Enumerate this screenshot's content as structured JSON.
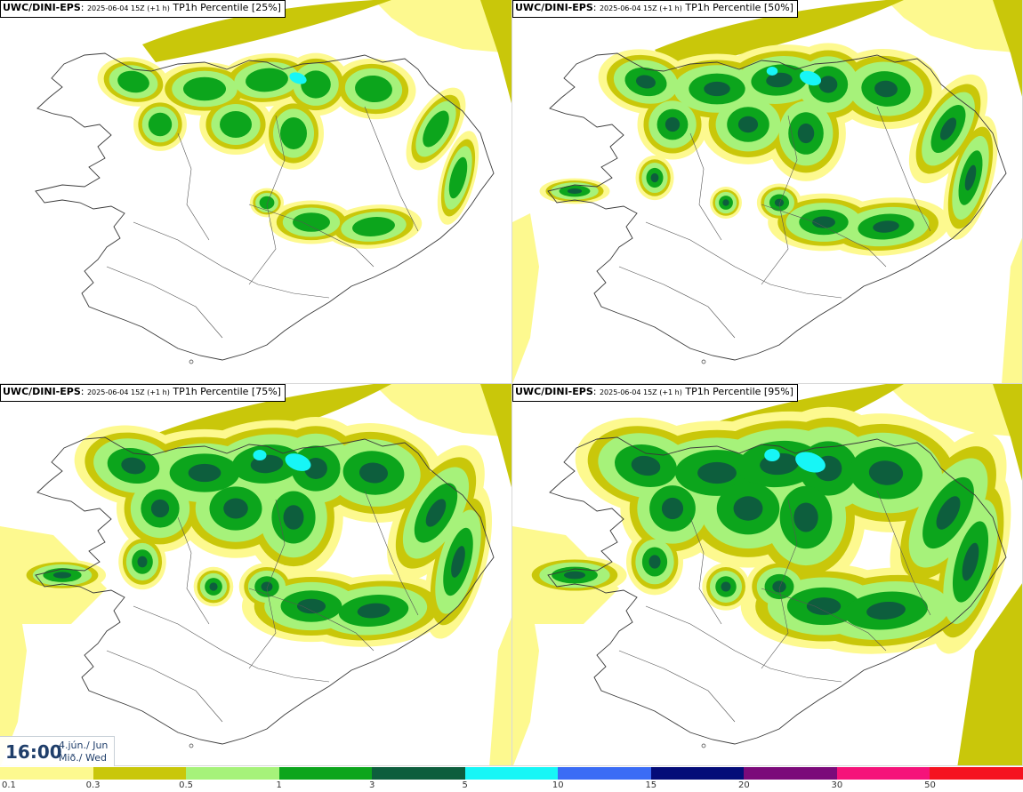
{
  "panels": [
    {
      "model": "UWC/DINI-EPS",
      "run": "2025-06-04 15Z (+1 h)",
      "field": "TP1h Percentile [25%]",
      "coverage": 0
    },
    {
      "model": "UWC/DINI-EPS",
      "run": "2025-06-04 15Z (+1 h)",
      "field": "TP1h Percentile [50%]",
      "coverage": 1
    },
    {
      "model": "UWC/DINI-EPS",
      "run": "2025-06-04 15Z (+1 h)",
      "field": "TP1h Percentile [75%]",
      "coverage": 2
    },
    {
      "model": "UWC/DINI-EPS",
      "run": "2025-06-04 15Z (+1 h)",
      "field": "TP1h Percentile [95%]",
      "coverage": 3
    }
  ],
  "time": {
    "clock": "16:00",
    "date_line1": "4.jún./ Jun",
    "date_line2": "Mið./ Wed"
  },
  "legend": {
    "colors": [
      "#fdf98f",
      "#c9c70a",
      "#a6f27a",
      "#0ca51c",
      "#0d5e3d",
      "#17f6f6",
      "#3b6cf5",
      "#040c78",
      "#7b0a7a",
      "#f5137a",
      "#f5121f"
    ],
    "labels": [
      "0.1",
      "0.3",
      "0.5",
      "1",
      "3",
      "5",
      "10",
      "15",
      "20",
      "30",
      "50"
    ]
  },
  "colors": {
    "light_yellow": "#fdf98f",
    "olive": "#c9c70a",
    "light_green": "#a6f27a",
    "green": "#0ca51c",
    "dark_green": "#0d5e3d",
    "cyan": "#17f6f6",
    "coast": "#3a3a3a",
    "time_text": "#1f3e6a"
  }
}
